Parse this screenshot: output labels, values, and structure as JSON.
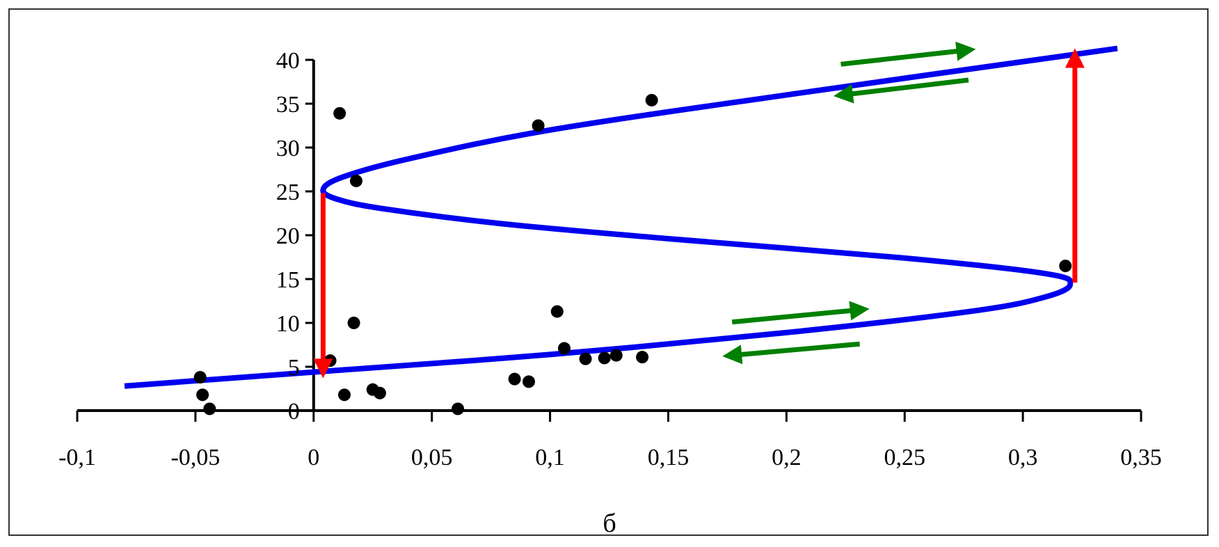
{
  "chart_data": {
    "type": "scatter",
    "title": "",
    "caption": "б",
    "xlabel": "",
    "ylabel": "",
    "xlim": [
      -0.1,
      0.35
    ],
    "ylim": [
      0,
      40
    ],
    "grid": false,
    "legend": "none",
    "x_ticks": [
      -0.1,
      -0.05,
      0,
      0.05,
      0.1,
      0.15,
      0.2,
      0.25,
      0.3,
      0.35
    ],
    "x_tick_labels": [
      "-0,1",
      "-0,05",
      "0",
      "0,05",
      "0,1",
      "0,15",
      "0,2",
      "0,25",
      "0,3",
      "0,35"
    ],
    "y_ticks": [
      0,
      5,
      10,
      15,
      20,
      25,
      30,
      35,
      40
    ],
    "y_tick_labels": [
      "0",
      "5",
      "10",
      "15",
      "20",
      "25",
      "30",
      "35",
      "40"
    ],
    "points": [
      {
        "x": -0.048,
        "y": 3.8
      },
      {
        "x": -0.047,
        "y": 1.8
      },
      {
        "x": -0.044,
        "y": 0.2
      },
      {
        "x": 0.007,
        "y": 5.7
      },
      {
        "x": 0.011,
        "y": 33.9
      },
      {
        "x": 0.013,
        "y": 1.8
      },
      {
        "x": 0.017,
        "y": 10.0
      },
      {
        "x": 0.018,
        "y": 26.2
      },
      {
        "x": 0.025,
        "y": 2.4
      },
      {
        "x": 0.028,
        "y": 2.0
      },
      {
        "x": 0.061,
        "y": 0.2
      },
      {
        "x": 0.085,
        "y": 3.6
      },
      {
        "x": 0.091,
        "y": 3.3
      },
      {
        "x": 0.095,
        "y": 32.5
      },
      {
        "x": 0.103,
        "y": 11.3
      },
      {
        "x": 0.106,
        "y": 7.1
      },
      {
        "x": 0.115,
        "y": 5.9
      },
      {
        "x": 0.123,
        "y": 6.0
      },
      {
        "x": 0.128,
        "y": 6.3
      },
      {
        "x": 0.139,
        "y": 6.1
      },
      {
        "x": 0.143,
        "y": 35.4
      },
      {
        "x": 0.318,
        "y": 16.5
      }
    ],
    "curve": {
      "name": "",
      "color": "#0000ee",
      "points": [
        {
          "x": -0.08,
          "y": 2.8
        },
        {
          "x": 0.0,
          "y": 4.4
        },
        {
          "x": 0.1,
          "y": 6.4
        },
        {
          "x": 0.2,
          "y": 8.9
        },
        {
          "x": 0.28,
          "y": 11.4
        },
        {
          "x": 0.31,
          "y": 13.0
        },
        {
          "x": 0.32,
          "y": 14.4
        },
        {
          "x": 0.31,
          "y": 15.6
        },
        {
          "x": 0.25,
          "y": 17.4
        },
        {
          "x": 0.15,
          "y": 19.6
        },
        {
          "x": 0.08,
          "y": 21.3
        },
        {
          "x": 0.03,
          "y": 23.0
        },
        {
          "x": 0.01,
          "y": 24.1
        },
        {
          "x": 0.004,
          "y": 25.2
        },
        {
          "x": 0.012,
          "y": 26.6
        },
        {
          "x": 0.04,
          "y": 28.7
        },
        {
          "x": 0.1,
          "y": 32.0
        },
        {
          "x": 0.2,
          "y": 36.0
        },
        {
          "x": 0.34,
          "y": 41.3
        }
      ]
    },
    "jump_arrows": {
      "color": "#ff0000",
      "items": [
        {
          "x": 0.004,
          "y_from": 24.8,
          "y_to": 4.8
        },
        {
          "x": 0.322,
          "y_from": 14.6,
          "y_to": 40.2
        }
      ]
    },
    "direction_arrows": {
      "color": "#008000",
      "items": [
        {
          "x_from": 0.223,
          "y_from": 39.5,
          "x_to": 0.276,
          "y_to": 41.1
        },
        {
          "x_from": 0.277,
          "y_from": 37.7,
          "x_to": 0.224,
          "y_to": 36.0
        },
        {
          "x_from": 0.177,
          "y_from": 10.1,
          "x_to": 0.231,
          "y_to": 11.5
        },
        {
          "x_from": 0.231,
          "y_from": 7.6,
          "x_to": 0.177,
          "y_to": 6.3
        }
      ]
    },
    "colors": {
      "points": "#000000",
      "axes": "#000000",
      "frame": "#333333"
    }
  }
}
